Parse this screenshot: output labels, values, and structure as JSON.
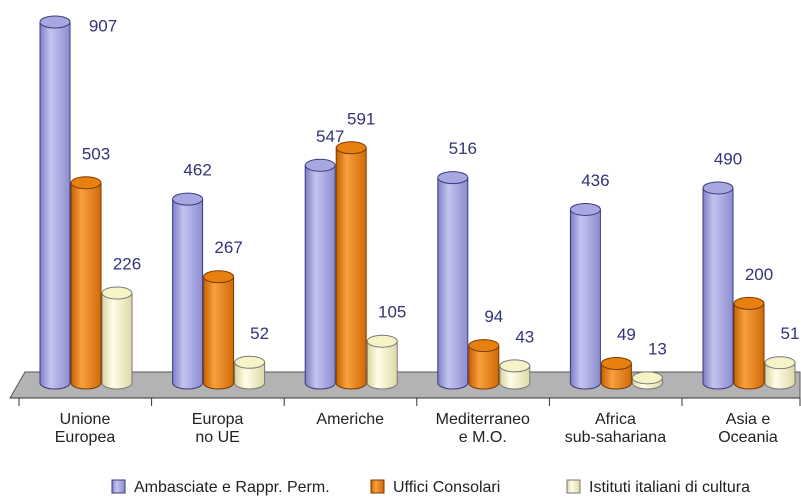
{
  "chart_data": {
    "type": "bar3d",
    "categories": [
      [
        "Unione",
        "Europea"
      ],
      [
        "Europa",
        "no UE"
      ],
      [
        "Americhe"
      ],
      [
        "Mediterraneo",
        "e  M.O."
      ],
      [
        "Africa",
        "sub-sahariana"
      ],
      [
        "Asia e",
        "Oceania"
      ]
    ],
    "series": [
      {
        "name": "Ambasciate e Rappr. Perm.",
        "color": "#a8a8e0",
        "values": [
          907,
          462,
          547,
          516,
          436,
          490
        ]
      },
      {
        "name": "Uffici Consolari",
        "color": "#e8800f",
        "values": [
          503,
          267,
          591,
          94,
          49,
          200
        ]
      },
      {
        "name": "Istituti italiani di cultura",
        "color": "#f6f3c6",
        "values": [
          226,
          52,
          105,
          43,
          13,
          51
        ]
      }
    ],
    "legend": "bottom"
  }
}
